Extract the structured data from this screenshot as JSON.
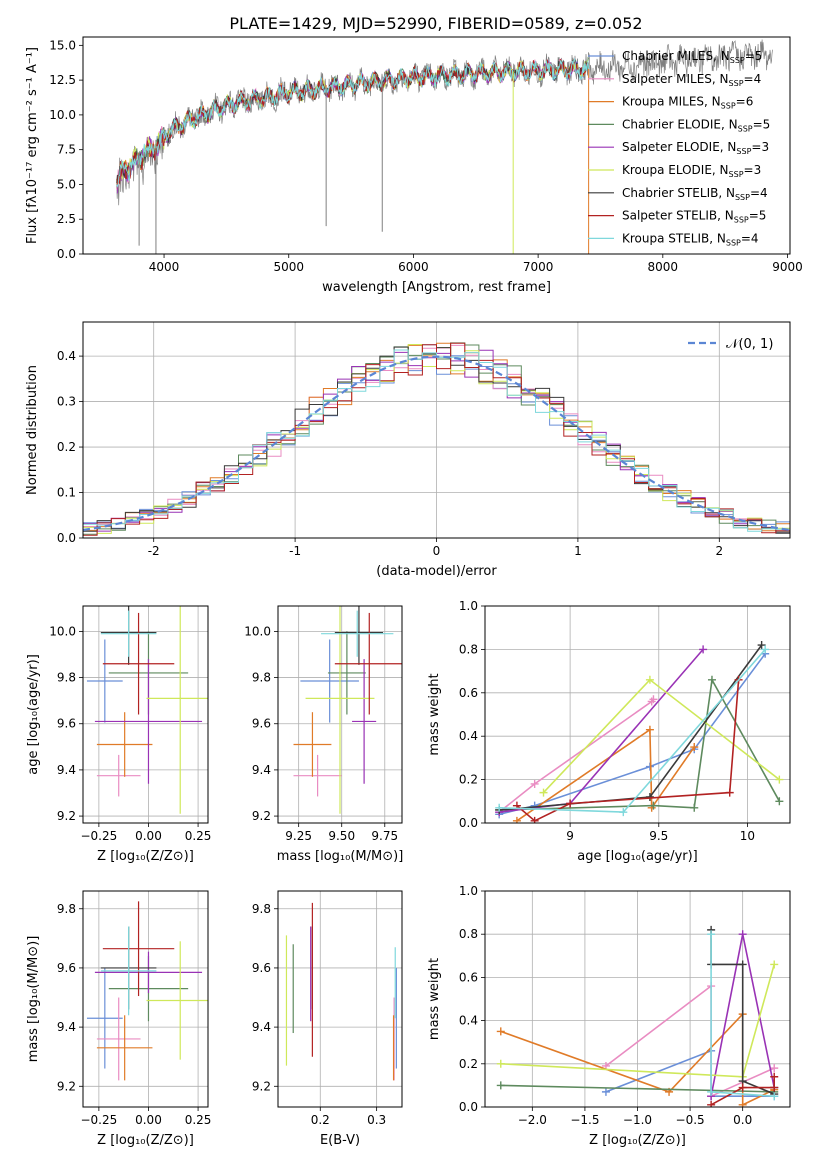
{
  "figure_title": "PLATE=1429, MJD=52990, FIBERID=0589, z=0.052",
  "colors": [
    "#6a8fd8",
    "#e98cc2",
    "#e07b28",
    "#5e8a5e",
    "#9932b5",
    "#cfe85a",
    "#3a3a3a",
    "#b22222",
    "#7fd8dc"
  ],
  "chart_data": [
    {
      "id": "spectrum",
      "type": "line",
      "title": "PLATE=1429, MJD=52990, FIBERID=0589, z=0.052",
      "xlabel": "wavelength [Angstrom, rest frame]",
      "ylabel": "Flux [fλ10⁻¹⁷ erg cm⁻² s⁻¹ A⁻¹]",
      "xlim": [
        3350,
        9020
      ],
      "ylim": [
        0,
        15.6
      ],
      "xticks": [
        4000,
        5000,
        6000,
        7000,
        8000,
        9000
      ],
      "yticks": [
        0.0,
        2.5,
        5.0,
        7.5,
        10.0,
        12.5,
        15.0
      ],
      "ytick_labels": [
        "0.0",
        "2.5",
        "5.0",
        "7.5",
        "10.0",
        "12.5",
        "15.0"
      ],
      "grid": false,
      "legend_position": "upper-right",
      "data_series": {
        "name": "data",
        "color": "#808080",
        "x_range": [
          3620,
          8880
        ]
      },
      "model_range": [
        3620,
        7410
      ],
      "continuum": {
        "x": [
          3620,
          3700,
          3800,
          3900,
          4000,
          4200,
          4500,
          5000,
          5500,
          6000,
          6500,
          7000,
          7400,
          8000,
          8500,
          8880
        ],
        "y": [
          5.6,
          6.6,
          7.3,
          8.0,
          8.6,
          9.6,
          10.7,
          11.6,
          12.2,
          12.7,
          13.0,
          13.2,
          13.3,
          13.8,
          14.2,
          14.4
        ]
      },
      "series": [
        {
          "name": "Chabrier MILES, N",
          "sub": "SSP",
          "value": "=5",
          "color": "#6a8fd8"
        },
        {
          "name": "Salpeter MILES, N",
          "sub": "SSP",
          "value": "=4",
          "color": "#e98cc2"
        },
        {
          "name": "Kroupa MILES, N",
          "sub": "SSP",
          "value": "=6",
          "color": "#e07b28"
        },
        {
          "name": "Chabrier ELODIE, N",
          "sub": "SSP",
          "value": "=5",
          "color": "#5e8a5e"
        },
        {
          "name": "Salpeter ELODIE, N",
          "sub": "SSP",
          "value": "=3",
          "color": "#9932b5"
        },
        {
          "name": "Kroupa ELODIE, N",
          "sub": "SSP",
          "value": "=3",
          "color": "#cfe85a"
        },
        {
          "name": "Chabrier STELIB, N",
          "sub": "SSP",
          "value": "=4",
          "color": "#3a3a3a"
        },
        {
          "name": "Salpeter STELIB, N",
          "sub": "SSP",
          "value": "=5",
          "color": "#b22222"
        },
        {
          "name": "Kroupa STELIB, N",
          "sub": "SSP",
          "value": "=4",
          "color": "#7fd8dc"
        }
      ]
    },
    {
      "id": "residuals",
      "type": "line",
      "xlabel": "(data-model)/error",
      "ylabel": "Normed distribution",
      "xlim": [
        -2.5,
        2.5
      ],
      "ylim": [
        0,
        0.475
      ],
      "xticks": [
        -2,
        -1,
        0,
        1,
        2
      ],
      "yticks": [
        0.0,
        0.1,
        0.2,
        0.3,
        0.4
      ],
      "ytick_labels": [
        "0.0",
        "0.1",
        "0.2",
        "0.3",
        "0.4"
      ],
      "grid": true,
      "legend": "𝒩(0, 1)",
      "legend_position": "upper-right",
      "bin_width": 0.1,
      "curve": {
        "name": "N(0,1)",
        "mean": 0,
        "sigma": 1,
        "color": "#5b86d4",
        "dash": true
      }
    },
    {
      "id": "age_vs_Z",
      "type": "scatter",
      "xlabel": "Z [log₁₀(Z/Z⊙)]",
      "ylabel": "age  [log₁₀(age/yr)]",
      "xlim": [
        -0.33,
        0.3
      ],
      "ylim": [
        9.17,
        10.11
      ],
      "xticks": [
        -0.25,
        0.0,
        0.25
      ],
      "xtick_labels": [
        "−0.25",
        "0.00",
        "0.25"
      ],
      "yticks": [
        9.2,
        9.4,
        9.6,
        9.8,
        10.0
      ],
      "grid": true,
      "points": [
        {
          "x": -0.22,
          "xerr": 0.09,
          "y": 9.785,
          "yerr": 0.18,
          "color": "#6a8fd8"
        },
        {
          "x": -0.15,
          "xerr": 0.11,
          "y": 9.375,
          "yerr": 0.09,
          "color": "#e98cc2"
        },
        {
          "x": -0.12,
          "xerr": 0.14,
          "y": 9.51,
          "yerr": 0.14,
          "color": "#e07b28"
        },
        {
          "x": 0.0,
          "xerr": 0.2,
          "y": 9.82,
          "yerr": 0.18,
          "color": "#5e8a5e"
        },
        {
          "x": 0.0,
          "xerr": 0.27,
          "y": 9.61,
          "yerr": 0.27,
          "color": "#9932b5"
        },
        {
          "x": 0.16,
          "xerr": 0.17,
          "y": 9.71,
          "yerr": 0.5,
          "color": "#cfe85a"
        },
        {
          "x": -0.1,
          "xerr": 0.14,
          "y": 9.995,
          "yerr": 0.14,
          "color": "#3a3a3a"
        },
        {
          "x": -0.05,
          "xerr": 0.18,
          "y": 9.86,
          "yerr": 0.22,
          "color": "#b22222"
        },
        {
          "x": -0.1,
          "xerr": 0.14,
          "y": 9.99,
          "yerr": 0.1,
          "color": "#7fd8dc"
        }
      ]
    },
    {
      "id": "age_vs_mass",
      "type": "scatter",
      "xlabel": "mass [log₁₀(M/M⊙)]",
      "ylabel": "",
      "xlim": [
        9.13,
        9.85
      ],
      "ylim": [
        9.17,
        10.11
      ],
      "xticks": [
        9.25,
        9.5,
        9.75
      ],
      "xtick_labels": [
        "9.25",
        "9.50",
        "9.75"
      ],
      "yticks": [
        9.2,
        9.4,
        9.6,
        9.8,
        10.0
      ],
      "grid": true,
      "points": [
        {
          "x": 9.43,
          "xerr": 0.17,
          "y": 9.785,
          "yerr": 0.18,
          "color": "#6a8fd8"
        },
        {
          "x": 9.36,
          "xerr": 0.14,
          "y": 9.375,
          "yerr": 0.09,
          "color": "#e98cc2"
        },
        {
          "x": 9.33,
          "xerr": 0.11,
          "y": 9.51,
          "yerr": 0.14,
          "color": "#e07b28"
        },
        {
          "x": 9.53,
          "xerr": 0.11,
          "y": 9.82,
          "yerr": 0.18,
          "color": "#5e8a5e"
        },
        {
          "x": 9.63,
          "xerr": 0.07,
          "y": 9.61,
          "yerr": 0.27,
          "color": "#9932b5"
        },
        {
          "x": 9.49,
          "xerr": 0.2,
          "y": 9.71,
          "yerr": 0.5,
          "color": "#cfe85a"
        },
        {
          "x": 9.6,
          "xerr": 0.14,
          "y": 9.995,
          "yerr": 0.14,
          "color": "#3a3a3a"
        },
        {
          "x": 9.66,
          "xerr": 0.2,
          "y": 9.86,
          "yerr": 0.22,
          "color": "#b22222"
        },
        {
          "x": 9.59,
          "xerr": 0.21,
          "y": 9.99,
          "yerr": 0.1,
          "color": "#7fd8dc"
        }
      ]
    },
    {
      "id": "weight_vs_age",
      "type": "line",
      "xlabel": "age  [log₁₀(age/yr)]",
      "ylabel": "mass weight",
      "xlim": [
        8.52,
        10.24
      ],
      "ylim": [
        0.0,
        1.0
      ],
      "xticks": [
        9.0,
        9.5,
        10.0
      ],
      "yticks": [
        0.0,
        0.2,
        0.4,
        0.6,
        0.8,
        1.0
      ],
      "grid": true,
      "series": [
        {
          "color": "#6a8fd8",
          "x": [
            8.6,
            8.8,
            9.45,
            9.7,
            10.1
          ],
          "y": [
            0.04,
            0.08,
            0.26,
            0.34,
            0.78
          ]
        },
        {
          "color": "#e98cc2",
          "x": [
            8.6,
            8.8,
            9.46,
            9.47
          ],
          "y": [
            0.05,
            0.18,
            0.56,
            0.57
          ]
        },
        {
          "color": "#e07b28",
          "x": [
            8.7,
            9.45,
            9.46,
            9.7
          ],
          "y": [
            0.01,
            0.43,
            0.07,
            0.35
          ]
        },
        {
          "color": "#5e8a5e",
          "x": [
            8.6,
            9.47,
            9.7,
            9.8,
            10.18
          ],
          "y": [
            0.06,
            0.08,
            0.07,
            0.66,
            0.1
          ]
        },
        {
          "color": "#9932b5",
          "x": [
            8.6,
            9.0,
            9.75
          ],
          "y": [
            0.05,
            0.09,
            0.8
          ]
        },
        {
          "color": "#cfe85a",
          "x": [
            8.85,
            9.45,
            10.18
          ],
          "y": [
            0.14,
            0.66,
            0.2
          ]
        },
        {
          "color": "#3a3a3a",
          "x": [
            8.6,
            9.45,
            10.08
          ],
          "y": [
            0.06,
            0.12,
            0.82
          ]
        },
        {
          "color": "#b22222",
          "x": [
            8.7,
            8.8,
            9.0,
            9.9,
            9.95
          ],
          "y": [
            0.08,
            0.01,
            0.09,
            0.14,
            0.66
          ]
        },
        {
          "color": "#7fd8dc",
          "x": [
            8.6,
            9.3,
            10.1
          ],
          "y": [
            0.07,
            0.05,
            0.8
          ]
        }
      ]
    },
    {
      "id": "mass_vs_Z",
      "type": "scatter",
      "xlabel": "Z [log₁₀(Z/Z⊙)]",
      "ylabel": "mass [log₁₀(M/M⊙)]",
      "xlim": [
        -0.33,
        0.3
      ],
      "ylim": [
        9.13,
        9.86
      ],
      "xticks": [
        -0.25,
        0.0,
        0.25
      ],
      "xtick_labels": [
        "−0.25",
        "0.00",
        "0.25"
      ],
      "yticks": [
        9.2,
        9.4,
        9.6,
        9.8
      ],
      "grid": true,
      "points": [
        {
          "x": -0.22,
          "xerr": 0.09,
          "y": 9.43,
          "yerr": 0.17,
          "color": "#6a8fd8"
        },
        {
          "x": -0.15,
          "xerr": 0.11,
          "y": 9.36,
          "yerr": 0.14,
          "color": "#e98cc2"
        },
        {
          "x": -0.12,
          "xerr": 0.14,
          "y": 9.33,
          "yerr": 0.11,
          "color": "#e07b28"
        },
        {
          "x": 0.0,
          "xerr": 0.2,
          "y": 9.53,
          "yerr": 0.11,
          "color": "#5e8a5e"
        },
        {
          "x": 0.0,
          "xerr": 0.27,
          "y": 9.585,
          "yerr": 0.07,
          "color": "#9932b5"
        },
        {
          "x": 0.16,
          "xerr": 0.17,
          "y": 9.49,
          "yerr": 0.2,
          "color": "#cfe85a"
        },
        {
          "x": -0.1,
          "xerr": 0.14,
          "y": 9.6,
          "yerr": 0.14,
          "color": "#3a3a3a"
        },
        {
          "x": -0.05,
          "xerr": 0.18,
          "y": 9.665,
          "yerr": 0.16,
          "color": "#b22222"
        },
        {
          "x": -0.1,
          "xerr": 0.14,
          "y": 9.59,
          "yerr": 0.15,
          "color": "#7fd8dc"
        }
      ]
    },
    {
      "id": "mass_vs_EBV",
      "type": "scatter",
      "xlabel": "E(B-V)",
      "ylabel": "",
      "xlim": [
        0.125,
        0.345
      ],
      "ylim": [
        9.13,
        9.86
      ],
      "xticks": [
        0.2,
        0.3
      ],
      "yticks": [
        9.2,
        9.4,
        9.6,
        9.8
      ],
      "grid": true,
      "points": [
        {
          "x": 0.335,
          "y": 9.43,
          "yerr": 0.17,
          "color": "#6a8fd8"
        },
        {
          "x": 0.331,
          "y": 9.36,
          "yerr": 0.14,
          "color": "#e98cc2"
        },
        {
          "x": 0.33,
          "y": 9.33,
          "yerr": 0.11,
          "color": "#e07b28"
        },
        {
          "x": 0.152,
          "y": 9.53,
          "yerr": 0.15,
          "color": "#5e8a5e"
        },
        {
          "x": 0.183,
          "y": 9.58,
          "yerr": 0.16,
          "color": "#9932b5"
        },
        {
          "x": 0.14,
          "y": 9.49,
          "yerr": 0.22,
          "color": "#cfe85a"
        },
        {
          "x": 0.186,
          "y": 9.6,
          "yerr": 0.14,
          "color": "#3a3a3a"
        },
        {
          "x": 0.186,
          "y": 9.56,
          "yerr": 0.26,
          "color": "#b22222"
        },
        {
          "x": 0.333,
          "y": 9.55,
          "yerr": 0.12,
          "color": "#7fd8dc"
        }
      ]
    },
    {
      "id": "weight_vs_Z",
      "type": "line",
      "xlabel": "Z [log₁₀(Z/Z⊙)]",
      "ylabel": "mass weight",
      "xlim": [
        -2.45,
        0.45
      ],
      "ylim": [
        0.0,
        1.0
      ],
      "xticks": [
        -2.0,
        -1.5,
        -1.0,
        -0.5,
        0.0
      ],
      "xtick_labels": [
        "−2.0",
        "−1.5",
        "−1.0",
        "−0.5",
        "0.0"
      ],
      "yticks": [
        0.0,
        0.2,
        0.4,
        0.6,
        0.8,
        1.0
      ],
      "grid": true,
      "series": [
        {
          "color": "#6a8fd8",
          "x": [
            -1.3,
            -0.3,
            -0.3,
            0.3
          ],
          "y": [
            0.07,
            0.26,
            0.05,
            0.05
          ]
        },
        {
          "color": "#e98cc2",
          "x": [
            -1.3,
            -0.3,
            -0.3,
            0.3
          ],
          "y": [
            0.19,
            0.56,
            0.05,
            0.18
          ]
        },
        {
          "color": "#e07b28",
          "x": [
            -2.3,
            -0.7,
            0.0,
            0.0,
            0.3
          ],
          "y": [
            0.35,
            0.07,
            0.43,
            0.01,
            0.08
          ]
        },
        {
          "color": "#5e8a5e",
          "x": [
            -2.3,
            0.3,
            0.3
          ],
          "y": [
            0.1,
            0.07,
            0.09
          ]
        },
        {
          "color": "#9932b5",
          "x": [
            -0.3,
            0.0,
            0.3
          ],
          "y": [
            0.05,
            0.8,
            0.09
          ]
        },
        {
          "color": "#cfe85a",
          "x": [
            -2.3,
            0.0,
            0.3
          ],
          "y": [
            0.2,
            0.14,
            0.66
          ]
        },
        {
          "color": "#3a3a3a",
          "x": [
            -0.3,
            -0.3,
            0.0,
            0.0,
            0.3
          ],
          "y": [
            0.82,
            0.66,
            0.66,
            0.12,
            0.06
          ]
        },
        {
          "color": "#b22222",
          "x": [
            -0.3,
            0.0,
            0.3,
            0.3
          ],
          "y": [
            0.01,
            0.09,
            0.09,
            0.14
          ]
        },
        {
          "color": "#7fd8dc",
          "x": [
            -0.3,
            -0.3,
            0.3
          ],
          "y": [
            0.8,
            0.07,
            0.05
          ]
        }
      ]
    }
  ]
}
